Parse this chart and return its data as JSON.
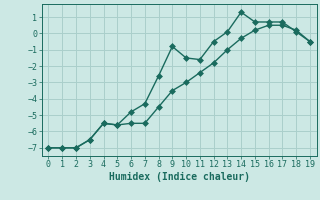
{
  "xlabel": "Humidex (Indice chaleur)",
  "bg_color": "#cce8e4",
  "grid_color": "#aacfcb",
  "line_color": "#1a6b5e",
  "xlim": [
    -0.5,
    19.5
  ],
  "ylim": [
    -7.5,
    1.8
  ],
  "yticks": [
    1,
    0,
    -1,
    -2,
    -3,
    -4,
    -5,
    -6,
    -7
  ],
  "xticks": [
    0,
    1,
    2,
    3,
    4,
    5,
    6,
    7,
    8,
    9,
    10,
    11,
    12,
    13,
    14,
    15,
    16,
    17,
    18,
    19
  ],
  "curve1_x": [
    0,
    1,
    2,
    3,
    4,
    5,
    6,
    7,
    8,
    9,
    10,
    11,
    12,
    13,
    14,
    15,
    16,
    17,
    18,
    19
  ],
  "curve1_y": [
    -7.0,
    -7.0,
    -7.0,
    -6.5,
    -5.5,
    -5.6,
    -4.8,
    -4.3,
    -2.6,
    -0.8,
    -1.5,
    -1.6,
    -0.5,
    0.1,
    1.3,
    0.7,
    0.7,
    0.7,
    0.1,
    -0.5
  ],
  "curve2_x": [
    0,
    1,
    2,
    3,
    4,
    5,
    6,
    7,
    8,
    9,
    10,
    11,
    12,
    13,
    14,
    15,
    16,
    17,
    18,
    19
  ],
  "curve2_y": [
    -7.0,
    -7.0,
    -7.0,
    -6.5,
    -5.5,
    -5.6,
    -5.5,
    -5.5,
    -4.5,
    -3.5,
    -3.0,
    -2.4,
    -1.8,
    -1.0,
    -0.3,
    0.2,
    0.5,
    0.5,
    0.2,
    -0.5
  ],
  "markersize": 3,
  "linewidth": 1.0
}
